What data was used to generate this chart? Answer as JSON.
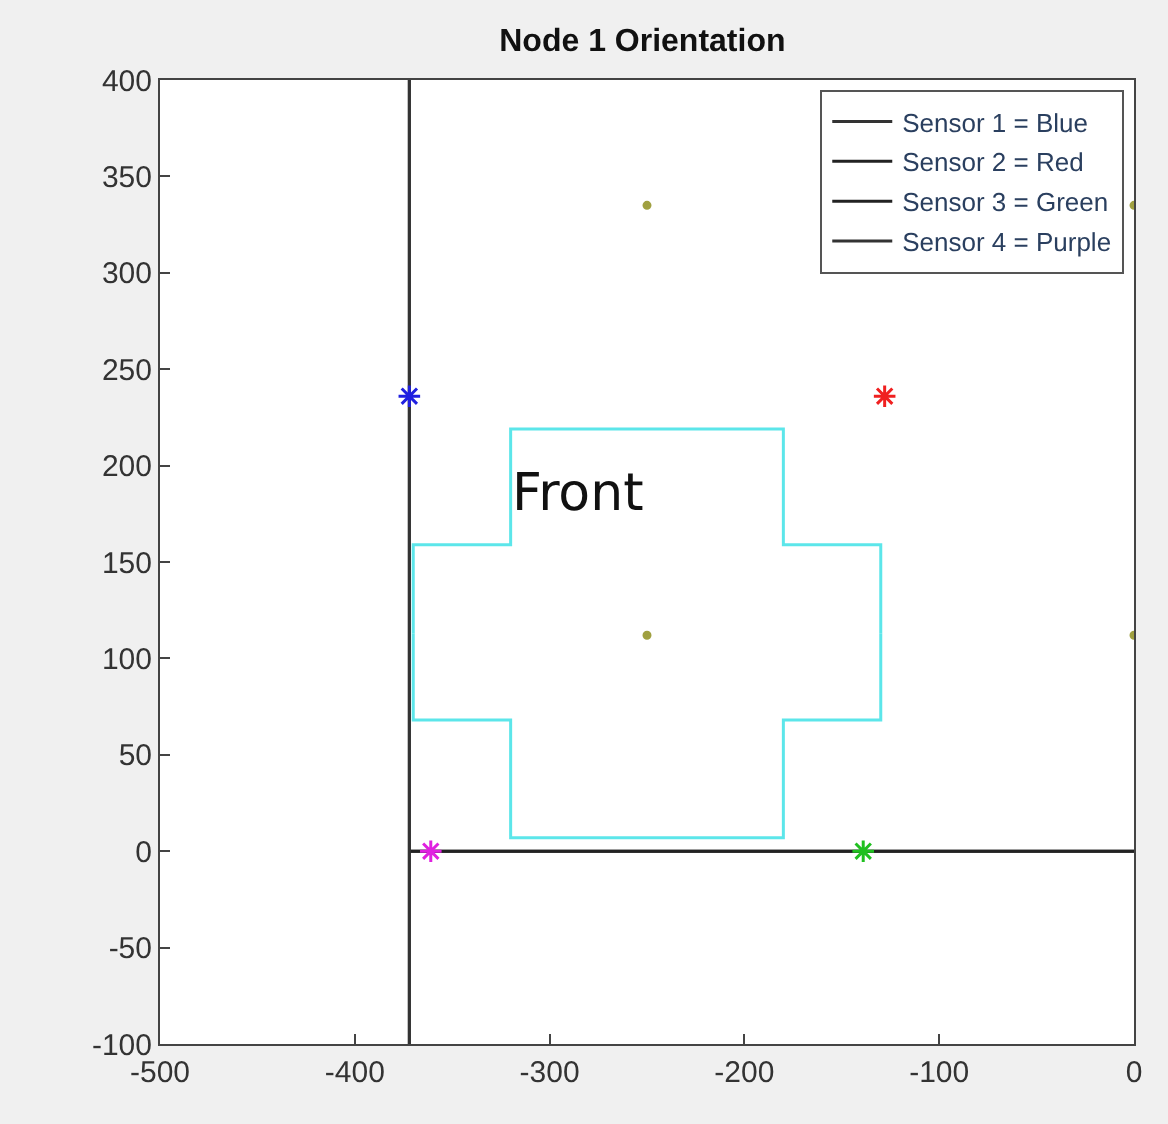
{
  "chart_data": {
    "type": "line",
    "title": "Node 1 Orientation",
    "xlim": [
      -500,
      0
    ],
    "xticks": [
      -500,
      -400,
      -300,
      -200,
      -100,
      0
    ],
    "ylim": [
      -100,
      400
    ],
    "yticks": [
      -100,
      -50,
      0,
      50,
      100,
      150,
      200,
      250,
      300,
      350,
      400
    ],
    "legend": "top right",
    "series": [
      {
        "name": "Sensor 1 = Blue",
        "color": "#333333",
        "x": [
          -372,
          -372
        ],
        "values": [
          -100,
          400
        ]
      },
      {
        "name": "Sensor 2 = Red",
        "color": "#222222",
        "x": [
          -372,
          0
        ],
        "values": [
          0,
          0
        ]
      },
      {
        "name": "Sensor 3 = Green",
        "color": "#222222",
        "x": [
          -372,
          0
        ],
        "values": [
          0,
          0
        ]
      },
      {
        "name": "Sensor 4 = Purple",
        "color": "#333333",
        "x": [
          -372,
          -372
        ],
        "values": [
          -100,
          400
        ]
      },
      {
        "color": "#5ce6ea",
        "x": [
          -370,
          -370,
          -320,
          -320,
          -180,
          -180,
          -130,
          -130,
          null,
          -370,
          -370,
          -320,
          -320,
          -180,
          -180,
          -130,
          -130
        ],
        "values": [
          113,
          159,
          159,
          219,
          219,
          159,
          159,
          113,
          null,
          113,
          68,
          68,
          7,
          7,
          68,
          68,
          113
        ]
      },
      {
        "type": "scatter",
        "marker": "cross",
        "colors": [
          "#2020e0",
          "#f02020",
          "#20c020",
          "#e020e0"
        ],
        "x": [
          -372,
          -128,
          -139,
          -361
        ],
        "values": [
          236,
          236,
          0,
          0
        ]
      },
      {
        "type": "scatter",
        "marker": "circle",
        "color": "#a0a040",
        "x": [
          -250,
          0,
          -250,
          0
        ],
        "values": [
          335,
          335,
          112,
          112
        ]
      }
    ],
    "annotations": [
      "Front"
    ]
  }
}
